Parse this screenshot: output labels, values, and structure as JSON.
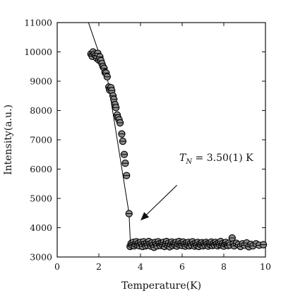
{
  "chart_data": {
    "type": "scatter",
    "xlabel": "Temperature(K)",
    "ylabel": "Intensity(a.u.)",
    "xlim": [
      0,
      10
    ],
    "ylim": [
      3000,
      11000
    ],
    "xticks": [
      0,
      2,
      4,
      6,
      8,
      10
    ],
    "yticks": [
      3000,
      4000,
      5000,
      6000,
      7000,
      8000,
      9000,
      10000,
      11000
    ],
    "grid": false,
    "series": [
      {
        "marker": "circle",
        "marker_fill": "#8c8c8c",
        "marker_edge": "#000000",
        "points": [
          [
            1.62,
            9930
          ],
          [
            1.68,
            9850
          ],
          [
            1.72,
            10000
          ],
          [
            1.78,
            9920
          ],
          [
            1.85,
            9880
          ],
          [
            1.9,
            9780
          ],
          [
            1.95,
            9950
          ],
          [
            2.0,
            9720
          ],
          [
            2.05,
            9830
          ],
          [
            2.1,
            9700
          ],
          [
            2.15,
            9600
          ],
          [
            2.2,
            9500
          ],
          [
            2.25,
            9440
          ],
          [
            2.3,
            9300
          ],
          [
            2.35,
            9280
          ],
          [
            2.4,
            9150
          ],
          [
            2.48,
            8800
          ],
          [
            2.52,
            8700
          ],
          [
            2.58,
            8780
          ],
          [
            2.62,
            8680
          ],
          [
            2.68,
            8500
          ],
          [
            2.72,
            8380
          ],
          [
            2.78,
            8200
          ],
          [
            2.82,
            8100
          ],
          [
            2.88,
            7850
          ],
          [
            2.92,
            7750
          ],
          [
            2.97,
            7680
          ],
          [
            3.02,
            7580
          ],
          [
            3.1,
            7200
          ],
          [
            3.15,
            6950
          ],
          [
            3.22,
            6500
          ],
          [
            3.27,
            6200
          ],
          [
            3.33,
            5780
          ],
          [
            3.45,
            4480
          ],
          [
            3.5,
            3360
          ],
          [
            3.55,
            3460
          ],
          [
            3.6,
            3400
          ],
          [
            3.65,
            3500
          ],
          [
            3.7,
            3380
          ],
          [
            3.75,
            3440
          ],
          [
            3.8,
            3520
          ],
          [
            3.85,
            3410
          ],
          [
            3.9,
            3470
          ],
          [
            3.95,
            3380
          ],
          [
            4.0,
            3500
          ],
          [
            4.05,
            3430
          ],
          [
            4.1,
            3360
          ],
          [
            4.15,
            3520
          ],
          [
            4.2,
            3440
          ],
          [
            4.25,
            3380
          ],
          [
            4.3,
            3470
          ],
          [
            4.35,
            3400
          ],
          [
            4.4,
            3530
          ],
          [
            4.45,
            3440
          ],
          [
            4.5,
            3370
          ],
          [
            4.55,
            3480
          ],
          [
            4.6,
            3410
          ],
          [
            4.65,
            3330
          ],
          [
            4.7,
            3500
          ],
          [
            4.75,
            3430
          ],
          [
            4.8,
            3380
          ],
          [
            4.85,
            3520
          ],
          [
            4.9,
            3450
          ],
          [
            4.95,
            3390
          ],
          [
            5.0,
            3470
          ],
          [
            5.05,
            3420
          ],
          [
            5.1,
            3500
          ],
          [
            5.15,
            3360
          ],
          [
            5.2,
            3450
          ],
          [
            5.25,
            3530
          ],
          [
            5.3,
            3400
          ],
          [
            5.35,
            3470
          ],
          [
            5.4,
            3350
          ],
          [
            5.45,
            3440
          ],
          [
            5.5,
            3510
          ],
          [
            5.55,
            3390
          ],
          [
            5.6,
            3460
          ],
          [
            5.65,
            3420
          ],
          [
            5.7,
            3500
          ],
          [
            5.75,
            3370
          ],
          [
            5.8,
            3450
          ],
          [
            5.85,
            3530
          ],
          [
            5.9,
            3410
          ],
          [
            5.95,
            3470
          ],
          [
            6.0,
            3390
          ],
          [
            6.05,
            3510
          ],
          [
            6.1,
            3440
          ],
          [
            6.15,
            3370
          ],
          [
            6.2,
            3480
          ],
          [
            6.25,
            3420
          ],
          [
            6.3,
            3500
          ],
          [
            6.35,
            3380
          ],
          [
            6.4,
            3460
          ],
          [
            6.45,
            3410
          ],
          [
            6.5,
            3520
          ],
          [
            6.55,
            3440
          ],
          [
            6.6,
            3370
          ],
          [
            6.65,
            3470
          ],
          [
            6.7,
            3400
          ],
          [
            6.75,
            3500
          ],
          [
            6.8,
            3360
          ],
          [
            6.85,
            3450
          ],
          [
            6.9,
            3420
          ],
          [
            6.95,
            3490
          ],
          [
            7.0,
            3380
          ],
          [
            7.05,
            3460
          ],
          [
            7.1,
            3410
          ],
          [
            7.15,
            3500
          ],
          [
            7.2,
            3440
          ],
          [
            7.25,
            3370
          ],
          [
            7.3,
            3470
          ],
          [
            7.35,
            3420
          ],
          [
            7.4,
            3510
          ],
          [
            7.45,
            3390
          ],
          [
            7.5,
            3460
          ],
          [
            7.55,
            3410
          ],
          [
            7.6,
            3500
          ],
          [
            7.65,
            3440
          ],
          [
            7.7,
            3380
          ],
          [
            7.75,
            3480
          ],
          [
            7.8,
            3420
          ],
          [
            7.85,
            3530
          ],
          [
            7.9,
            3400
          ],
          [
            7.95,
            3460
          ],
          [
            8.0,
            3370
          ],
          [
            8.05,
            3450
          ],
          [
            8.1,
            3500
          ],
          [
            8.15,
            3420
          ],
          [
            8.2,
            3390
          ],
          [
            8.25,
            3470
          ],
          [
            8.3,
            3410
          ],
          [
            8.4,
            3650
          ],
          [
            8.45,
            3440
          ],
          [
            8.5,
            3380
          ],
          [
            8.6,
            3470
          ],
          [
            8.7,
            3420
          ],
          [
            8.8,
            3360
          ],
          [
            8.9,
            3450
          ],
          [
            9.0,
            3400
          ],
          [
            9.1,
            3480
          ],
          [
            9.2,
            3350
          ],
          [
            9.3,
            3430
          ],
          [
            9.4,
            3380
          ],
          [
            9.55,
            3450
          ],
          [
            9.7,
            3400
          ],
          [
            9.9,
            3420
          ]
        ]
      }
    ],
    "fit_line": {
      "color": "#000000",
      "points": [
        [
          1.5,
          11000
        ],
        [
          2.4,
          9150
        ],
        [
          3.45,
          4480
        ],
        [
          3.52,
          3400
        ],
        [
          10.0,
          3400
        ]
      ]
    },
    "annotation": {
      "text_T": "T",
      "text_sub": "N",
      "text_rest": " = 3.50(1) K",
      "arrow_tail": [
        5.75,
        5450
      ],
      "arrow_head": [
        4.05,
        4280
      ]
    }
  }
}
